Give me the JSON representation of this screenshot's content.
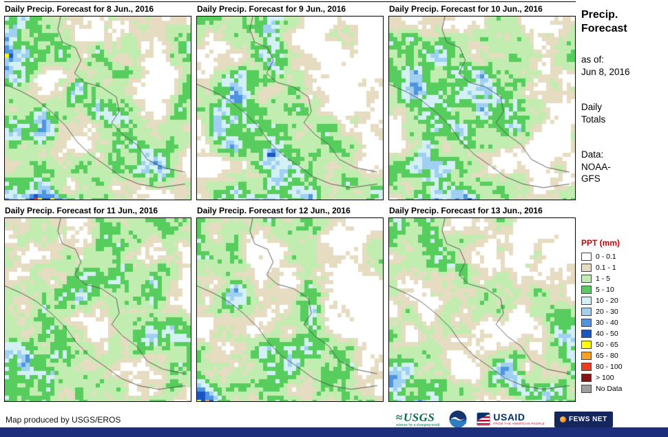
{
  "panels": [
    {
      "title": "Daily Precip. Forecast for 8 Jun., 2016"
    },
    {
      "title": "Daily Precip. Forecast for 9 Jun., 2016"
    },
    {
      "title": "Daily Precip. Forecast for 10 Jun., 2016"
    },
    {
      "title": "Daily Precip. Forecast for 11 Jun., 2016"
    },
    {
      "title": "Daily Precip. Forecast for 12 Jun., 2016"
    },
    {
      "title": "Daily Precip. Forecast for 13 Jun., 2016"
    }
  ],
  "sidebar": {
    "title_line1": "Precip.",
    "title_line2": "Forecast",
    "asof_label": "as of:",
    "asof_date": "Jun 8, 2016",
    "totals_line1": "Daily",
    "totals_line2": "Totals",
    "data_label": "Data:",
    "data_line1": "NOAA-",
    "data_line2": "GFS"
  },
  "legend": {
    "title": "PPT (mm)",
    "title_color": "#cc0000",
    "entries": [
      {
        "label": "0 - 0.1",
        "color": "#ffffff"
      },
      {
        "label": "0.1 - 1",
        "color": "#e6dcc1"
      },
      {
        "label": "1 - 5",
        "color": "#c2edb0"
      },
      {
        "label": "5 - 10",
        "color": "#57cd5e"
      },
      {
        "label": "10 - 20",
        "color": "#d3f1f5"
      },
      {
        "label": "20 - 30",
        "color": "#9fd0f2"
      },
      {
        "label": "30 - 40",
        "color": "#4e94e0"
      },
      {
        "label": "40 - 50",
        "color": "#1956c4"
      },
      {
        "label": "50 - 65",
        "color": "#ffff00"
      },
      {
        "label": "65 - 80",
        "color": "#ffa01e"
      },
      {
        "label": "80 - 100",
        "color": "#f03c1e"
      },
      {
        "label": "> 100",
        "color": "#8c1010"
      },
      {
        "label": "No Data",
        "color": "#9e9e9e"
      }
    ]
  },
  "footer": {
    "credit": "Map produced by USGS/EROS",
    "logos": [
      {
        "name": "usgs-logo",
        "text": "USGS",
        "tagline": "science for a changing world"
      },
      {
        "name": "noaa-logo"
      },
      {
        "name": "usaid-logo",
        "text": "USAID",
        "tagline": "FROM THE AMERICAN PEOPLE"
      },
      {
        "name": "fews-net-logo",
        "text": "FEWS NET"
      }
    ]
  }
}
